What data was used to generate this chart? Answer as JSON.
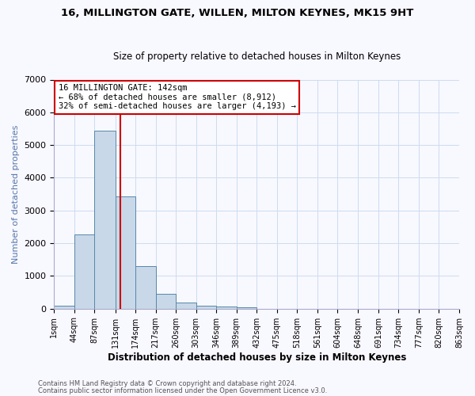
{
  "title1": "16, MILLINGTON GATE, WILLEN, MILTON KEYNES, MK15 9HT",
  "title2": "Size of property relative to detached houses in Milton Keynes",
  "xlabel": "Distribution of detached houses by size in Milton Keynes",
  "ylabel": "Number of detached properties",
  "bin_edges": [
    1,
    44,
    87,
    131,
    174,
    217,
    260,
    303,
    346,
    389,
    432,
    475,
    518,
    561,
    604,
    648,
    691,
    734,
    777,
    820,
    863
  ],
  "bar_heights": [
    100,
    2280,
    5450,
    3430,
    1300,
    450,
    175,
    100,
    75,
    50,
    0,
    0,
    0,
    0,
    0,
    0,
    0,
    0,
    0,
    0
  ],
  "bar_color": "#c8d8e8",
  "bar_edge_color": "#5588aa",
  "property_size": 142,
  "vline_color": "#cc0000",
  "ylim": [
    0,
    7000
  ],
  "annotation_title": "16 MILLINGTON GATE: 142sqm",
  "annotation_line1": "← 68% of detached houses are smaller (8,912)",
  "annotation_line2": "32% of semi-detached houses are larger (4,193) →",
  "annotation_box_edge": "#cc0000",
  "footnote1": "Contains HM Land Registry data © Crown copyright and database right 2024.",
  "footnote2": "Contains public sector information licensed under the Open Government Licence v3.0.",
  "background_color": "#f8f8ff",
  "grid_color": "#ccddee"
}
